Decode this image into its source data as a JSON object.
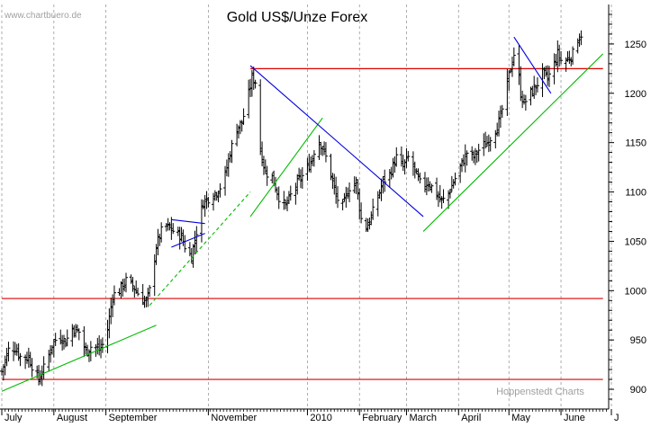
{
  "header": {
    "watermark": "www.chartbuero.de",
    "credit": "Hoppenstedt Charts"
  },
  "chart_data": {
    "type": "ohlc",
    "title": "Gold US$/Unze Forex",
    "xlabel": "",
    "ylabel": "",
    "ylim": [
      880,
      1290
    ],
    "y_ticks": [
      900,
      950,
      1000,
      1050,
      1100,
      1150,
      1200,
      1250
    ],
    "y_axis_side": "right",
    "grid": "vertical-dashed",
    "x_month_labels": [
      "July",
      "August",
      "September",
      "November",
      "2010",
      "February",
      "March",
      "April",
      "May",
      "June",
      "J"
    ],
    "x_label_days": [
      2,
      33,
      64,
      125,
      184,
      215,
      243,
      274,
      304,
      335,
      365
    ],
    "x_start": "2009-07-01",
    "series": [
      {
        "name": "Gold",
        "close_path": [
          [
            0,
            918
          ],
          [
            4,
            940
          ],
          [
            8,
            942
          ],
          [
            12,
            930
          ],
          [
            16,
            933
          ],
          [
            20,
            915
          ],
          [
            22,
            910
          ],
          [
            26,
            925
          ],
          [
            30,
            945
          ],
          [
            34,
            955
          ],
          [
            38,
            948
          ],
          [
            42,
            962
          ],
          [
            46,
            958
          ],
          [
            50,
            938
          ],
          [
            54,
            945
          ],
          [
            58,
            940
          ],
          [
            62,
            950
          ],
          [
            66,
            995
          ],
          [
            70,
            1000
          ],
          [
            74,
            1010
          ],
          [
            78,
            1005
          ],
          [
            82,
            995
          ],
          [
            86,
            988
          ],
          [
            88,
            1000
          ],
          [
            92,
            1045
          ],
          [
            95,
            1060
          ],
          [
            98,
            1065
          ],
          [
            101,
            1062
          ],
          [
            104,
            1058
          ],
          [
            107,
            1055
          ],
          [
            110,
            1040
          ],
          [
            113,
            1035
          ],
          [
            116,
            1060
          ],
          [
            120,
            1090
          ],
          [
            124,
            1095
          ],
          [
            128,
            1100
          ],
          [
            132,
            1110
          ],
          [
            136,
            1140
          ],
          [
            140,
            1165
          ],
          [
            143,
            1170
          ],
          [
            146,
            1192
          ],
          [
            149,
            1215
          ],
          [
            151,
            1212
          ],
          [
            153,
            1150
          ],
          [
            157,
            1120
          ],
          [
            161,
            1115
          ],
          [
            165,
            1095
          ],
          [
            169,
            1085
          ],
          [
            173,
            1100
          ],
          [
            177,
            1112
          ],
          [
            181,
            1120
          ],
          [
            185,
            1135
          ],
          [
            188,
            1155
          ],
          [
            191,
            1145
          ],
          [
            195,
            1125
          ],
          [
            199,
            1095
          ],
          [
            203,
            1085
          ],
          [
            207,
            1105
          ],
          [
            211,
            1110
          ],
          [
            213,
            1085
          ],
          [
            215,
            1060
          ],
          [
            219,
            1070
          ],
          [
            223,
            1090
          ],
          [
            227,
            1110
          ],
          [
            231,
            1118
          ],
          [
            235,
            1135
          ],
          [
            239,
            1125
          ],
          [
            243,
            1138
          ],
          [
            246,
            1120
          ],
          [
            250,
            1105
          ],
          [
            254,
            1110
          ],
          [
            258,
            1100
          ],
          [
            262,
            1090
          ],
          [
            265,
            1095
          ],
          [
            269,
            1110
          ],
          [
            273,
            1125
          ],
          [
            277,
            1140
          ],
          [
            281,
            1135
          ],
          [
            285,
            1145
          ],
          [
            289,
            1150
          ],
          [
            293,
            1160
          ],
          [
            297,
            1175
          ],
          [
            301,
            1210
          ],
          [
            305,
            1240
          ],
          [
            307,
            1230
          ],
          [
            309,
            1200
          ],
          [
            311,
            1190
          ],
          [
            315,
            1200
          ],
          [
            319,
            1210
          ],
          [
            322,
            1220
          ],
          [
            325,
            1215
          ],
          [
            328,
            1225
          ],
          [
            331,
            1240
          ],
          [
            334,
            1230
          ],
          [
            337,
            1235
          ],
          [
            340,
            1240
          ],
          [
            343,
            1255
          ],
          [
            345,
            1260
          ]
        ]
      }
    ],
    "trendlines": [
      {
        "color": "#00bb00",
        "style": "solid",
        "from": [
          0,
          898
        ],
        "to": [
          92,
          965
        ]
      },
      {
        "color": "#00bb00",
        "style": "dashed",
        "from": [
          88,
          985
        ],
        "to": [
          148,
          1100
        ]
      },
      {
        "color": "#00bb00",
        "style": "solid",
        "from": [
          148,
          1075
        ],
        "to": [
          191,
          1175
        ]
      },
      {
        "color": "#00bb00",
        "style": "solid",
        "from": [
          251,
          1060
        ],
        "to": [
          358,
          1240
        ]
      },
      {
        "color": "#0000dd",
        "style": "solid",
        "from": [
          148,
          1228
        ],
        "to": [
          251,
          1075
        ]
      },
      {
        "color": "#0000dd",
        "style": "solid",
        "from": [
          101,
          1072
        ],
        "to": [
          121,
          1068
        ]
      },
      {
        "color": "#0000dd",
        "style": "solid",
        "from": [
          101,
          1044
        ],
        "to": [
          121,
          1058
        ]
      },
      {
        "color": "#0000dd",
        "style": "solid",
        "from": [
          305,
          1257
        ],
        "to": [
          327,
          1200
        ]
      }
    ],
    "hlines": [
      {
        "color": "#dd0000",
        "y": 910,
        "from": 0,
        "to": 358
      },
      {
        "color": "#dd0000",
        "y": 992,
        "from": 0,
        "to": 358
      },
      {
        "color": "#dd0000",
        "y": 1225,
        "from": 148,
        "to": 358
      }
    ],
    "colors": {
      "bars": "#000000",
      "grid": "#999999",
      "axis": "#000000"
    }
  }
}
